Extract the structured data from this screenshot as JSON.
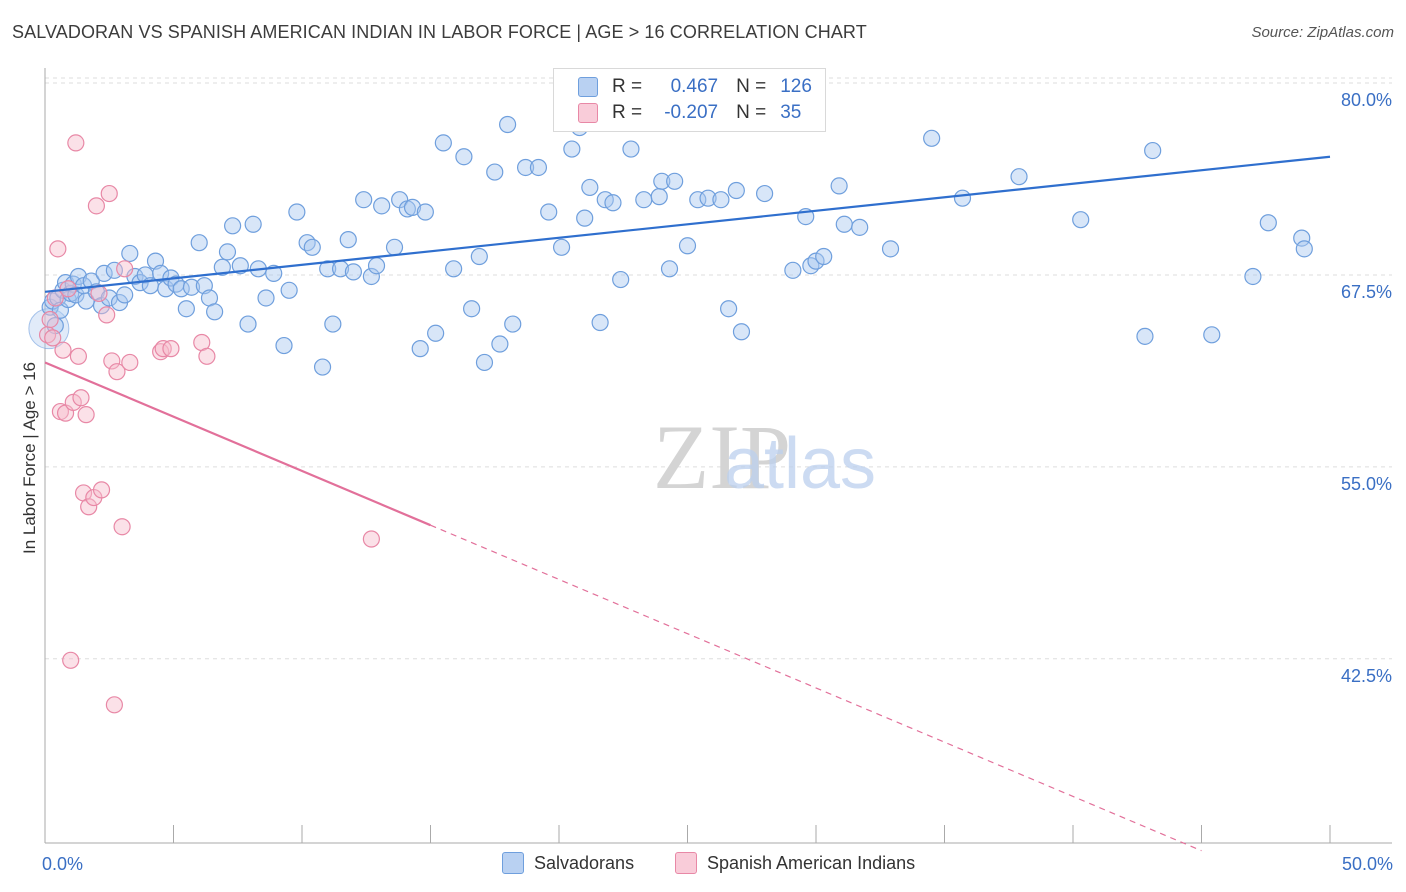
{
  "header": {
    "title": "SALVADORAN VS SPANISH AMERICAN INDIAN IN LABOR FORCE | AGE > 16 CORRELATION CHART",
    "source": "Source: ZipAtlas.com"
  },
  "watermark": {
    "zip": "ZIP",
    "atlas": "atlas"
  },
  "legend_top": [
    {
      "r_label": "R =",
      "r_value": "0.467",
      "n_label": "N =",
      "n_value": "126"
    },
    {
      "r_label": "R =",
      "r_value": "-0.207",
      "n_label": "N =",
      "n_value": "35"
    }
  ],
  "legend_bottom": [
    "Salvadorans",
    "Spanish American Indians"
  ],
  "colors": {
    "salvadorans_fill": "#a9c7ef",
    "salvadorans_stroke": "#6f9fdd",
    "salvadorans_line": "#2f6fce",
    "sai_fill": "#f7bccd",
    "sai_stroke": "#e888a6",
    "sai_line": "#e2709a",
    "tick_label": "#3a6fc4",
    "grid": "#dddddd"
  },
  "chart_data": {
    "type": "scatter",
    "title": "SALVADORAN VS SPANISH AMERICAN INDIAN IN LABOR FORCE | AGE > 16 CORRELATION CHART",
    "xlabel": "",
    "ylabel": "In Labor Force | Age > 16",
    "xlim": [
      0,
      50
    ],
    "ylim": [
      30.5,
      81.5
    ],
    "x_tick_labels": [
      "0.0%",
      "50.0%"
    ],
    "y_ticks": [
      80.0,
      67.5,
      55.0,
      42.5
    ],
    "y_tick_labels": [
      "80.0%",
      "67.5%",
      "55.0%",
      "42.5%"
    ],
    "grid": true,
    "legend_position": "top-center",
    "series": [
      {
        "name": "Salvadorans",
        "r": 0.467,
        "n": 126,
        "trend": {
          "x0": 0,
          "y0": 66.4,
          "x1": 50,
          "y1": 75.2
        },
        "points": [
          [
            0.2,
            65.4
          ],
          [
            0.3,
            65.8
          ],
          [
            0.4,
            64.2
          ],
          [
            0.5,
            66.0
          ],
          [
            0.6,
            65.2
          ],
          [
            0.7,
            66.5
          ],
          [
            0.8,
            67.0
          ],
          [
            0.9,
            65.9
          ],
          [
            1.0,
            66.3
          ],
          [
            1.1,
            66.9
          ],
          [
            1.2,
            66.2
          ],
          [
            1.3,
            67.4
          ],
          [
            1.5,
            66.8
          ],
          [
            1.6,
            65.8
          ],
          [
            1.8,
            67.1
          ],
          [
            2.0,
            66.4
          ],
          [
            2.2,
            65.5
          ],
          [
            2.3,
            67.6
          ],
          [
            2.5,
            66.0
          ],
          [
            2.7,
            67.8
          ],
          [
            2.9,
            65.7
          ],
          [
            3.1,
            66.2
          ],
          [
            3.3,
            68.9
          ],
          [
            3.5,
            67.4
          ],
          [
            3.7,
            67.0
          ],
          [
            3.9,
            67.5
          ],
          [
            4.1,
            66.8
          ],
          [
            4.3,
            68.4
          ],
          [
            4.5,
            67.6
          ],
          [
            4.7,
            66.6
          ],
          [
            4.9,
            67.3
          ],
          [
            5.1,
            66.9
          ],
          [
            5.3,
            66.6
          ],
          [
            5.5,
            65.3
          ],
          [
            5.7,
            66.7
          ],
          [
            6.0,
            69.6
          ],
          [
            6.2,
            66.8
          ],
          [
            6.4,
            66.0
          ],
          [
            6.6,
            65.1
          ],
          [
            6.9,
            68.0
          ],
          [
            7.1,
            69.0
          ],
          [
            7.3,
            70.7
          ],
          [
            7.6,
            68.1
          ],
          [
            7.9,
            64.3
          ],
          [
            8.1,
            70.8
          ],
          [
            8.3,
            67.9
          ],
          [
            8.6,
            66.0
          ],
          [
            8.9,
            67.6
          ],
          [
            9.3,
            62.9
          ],
          [
            9.5,
            66.5
          ],
          [
            9.8,
            71.6
          ],
          [
            10.2,
            69.6
          ],
          [
            10.4,
            69.3
          ],
          [
            10.8,
            61.5
          ],
          [
            11.0,
            67.9
          ],
          [
            11.2,
            64.3
          ],
          [
            11.5,
            67.9
          ],
          [
            11.8,
            69.8
          ],
          [
            12.0,
            67.7
          ],
          [
            12.4,
            72.4
          ],
          [
            12.7,
            67.4
          ],
          [
            12.9,
            68.1
          ],
          [
            13.1,
            72.0
          ],
          [
            13.6,
            69.3
          ],
          [
            13.8,
            72.4
          ],
          [
            14.1,
            71.8
          ],
          [
            14.3,
            71.9
          ],
          [
            14.6,
            62.7
          ],
          [
            14.8,
            71.6
          ],
          [
            15.2,
            63.7
          ],
          [
            15.5,
            76.1
          ],
          [
            15.9,
            67.9
          ],
          [
            16.3,
            75.2
          ],
          [
            16.6,
            65.3
          ],
          [
            16.9,
            68.7
          ],
          [
            17.1,
            61.8
          ],
          [
            17.5,
            74.2
          ],
          [
            17.7,
            63.0
          ],
          [
            18.0,
            77.3
          ],
          [
            18.2,
            64.3
          ],
          [
            18.7,
            74.5
          ],
          [
            19.2,
            74.5
          ],
          [
            19.6,
            71.6
          ],
          [
            20.1,
            69.3
          ],
          [
            20.5,
            75.7
          ],
          [
            20.8,
            77.1
          ],
          [
            21.0,
            71.2
          ],
          [
            21.2,
            73.2
          ],
          [
            21.6,
            64.4
          ],
          [
            21.8,
            72.4
          ],
          [
            22.1,
            72.2
          ],
          [
            22.4,
            67.2
          ],
          [
            22.8,
            75.7
          ],
          [
            23.3,
            72.4
          ],
          [
            23.9,
            72.6
          ],
          [
            24.0,
            73.6
          ],
          [
            24.3,
            67.9
          ],
          [
            24.5,
            73.6
          ],
          [
            25.0,
            69.4
          ],
          [
            25.4,
            72.4
          ],
          [
            25.8,
            72.5
          ],
          [
            26.3,
            72.4
          ],
          [
            26.6,
            65.3
          ],
          [
            26.9,
            73.0
          ],
          [
            27.1,
            63.8
          ],
          [
            28.0,
            72.8
          ],
          [
            29.1,
            67.8
          ],
          [
            29.6,
            71.3
          ],
          [
            29.8,
            68.1
          ],
          [
            30.0,
            68.4
          ],
          [
            30.3,
            68.7
          ],
          [
            30.9,
            73.3
          ],
          [
            31.1,
            70.8
          ],
          [
            31.7,
            70.6
          ],
          [
            32.9,
            69.2
          ],
          [
            34.5,
            76.4
          ],
          [
            35.7,
            72.5
          ],
          [
            37.9,
            73.9
          ],
          [
            40.3,
            71.1
          ],
          [
            43.1,
            75.6
          ],
          [
            45.4,
            63.6
          ],
          [
            47.0,
            67.4
          ],
          [
            48.9,
            69.9
          ],
          [
            47.6,
            70.9
          ],
          [
            49.0,
            69.2
          ],
          [
            42.8,
            63.5
          ]
        ]
      },
      {
        "name": "Spanish American Indians",
        "r": -0.207,
        "n": 35,
        "trend": {
          "x0": 0,
          "y0": 61.8,
          "x1": 15,
          "y1": 51.2,
          "dashed_to_x": 45,
          "dashed_to_y": 30.0
        },
        "points": [
          [
            0.1,
            63.6
          ],
          [
            0.2,
            64.6
          ],
          [
            0.3,
            63.4
          ],
          [
            0.4,
            66.0
          ],
          [
            0.5,
            69.2
          ],
          [
            0.6,
            58.6
          ],
          [
            0.7,
            62.6
          ],
          [
            0.8,
            58.5
          ],
          [
            0.9,
            66.6
          ],
          [
            1.0,
            42.4
          ],
          [
            1.1,
            59.2
          ],
          [
            1.2,
            76.1
          ],
          [
            1.3,
            62.2
          ],
          [
            1.4,
            59.5
          ],
          [
            1.5,
            53.3
          ],
          [
            1.6,
            58.4
          ],
          [
            1.7,
            52.4
          ],
          [
            1.9,
            53.0
          ],
          [
            2.0,
            72.0
          ],
          [
            2.1,
            66.3
          ],
          [
            2.2,
            53.5
          ],
          [
            2.4,
            64.9
          ],
          [
            2.5,
            72.8
          ],
          [
            2.6,
            61.9
          ],
          [
            2.7,
            39.5
          ],
          [
            2.8,
            61.2
          ],
          [
            3.0,
            51.1
          ],
          [
            3.1,
            67.9
          ],
          [
            3.3,
            61.8
          ],
          [
            4.5,
            62.5
          ],
          [
            4.6,
            62.7
          ],
          [
            4.9,
            62.7
          ],
          [
            6.1,
            63.1
          ],
          [
            6.3,
            62.2
          ],
          [
            12.7,
            50.3
          ]
        ]
      }
    ]
  }
}
